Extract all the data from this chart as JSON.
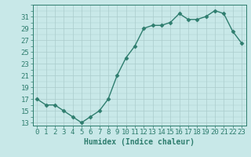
{
  "x": [
    0,
    1,
    2,
    3,
    4,
    5,
    6,
    7,
    8,
    9,
    10,
    11,
    12,
    13,
    14,
    15,
    16,
    17,
    18,
    19,
    20,
    21,
    22,
    23
  ],
  "y": [
    17,
    16,
    16,
    15,
    14,
    13,
    14,
    15,
    17,
    21,
    24,
    26,
    29,
    29.5,
    29.5,
    30,
    31.5,
    30.5,
    30.5,
    31,
    32,
    31.5,
    28.5,
    26.5
  ],
  "line_color": "#2e7d6e",
  "marker_color": "#2e7d6e",
  "bg_color": "#c8e8e8",
  "grid_color": "#aacccc",
  "xlabel": "Humidex (Indice chaleur)",
  "xlim": [
    -0.5,
    23.5
  ],
  "ylim": [
    12.5,
    33.0
  ],
  "yticks": [
    13,
    15,
    17,
    19,
    21,
    23,
    25,
    27,
    29,
    31
  ],
  "tick_color": "#2e7d6e",
  "label_color": "#2e7d6e",
  "font_size": 6.5
}
